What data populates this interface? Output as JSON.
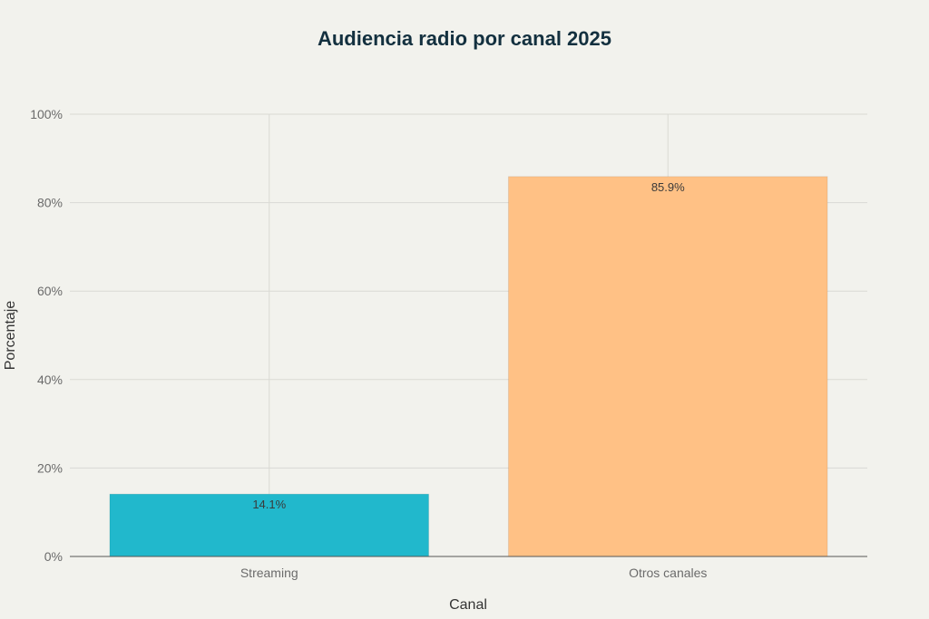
{
  "chart_data": {
    "type": "bar",
    "title": "Audiencia radio por canal 2025",
    "xlabel": "Canal",
    "ylabel": "Porcentaje",
    "categories": [
      "Streaming",
      "Otros canales"
    ],
    "values": [
      14.1,
      85.9
    ],
    "data_labels": [
      "14.1%",
      "85.9%"
    ],
    "colors": [
      "#21b8cc",
      "#ffc185"
    ],
    "ylim": [
      0,
      100
    ],
    "y_ticks": [
      0,
      20,
      40,
      60,
      80,
      100
    ],
    "y_tick_labels": [
      "0%",
      "20%",
      "40%",
      "60%",
      "80%",
      "100%"
    ],
    "grid": true,
    "legend": "none"
  }
}
